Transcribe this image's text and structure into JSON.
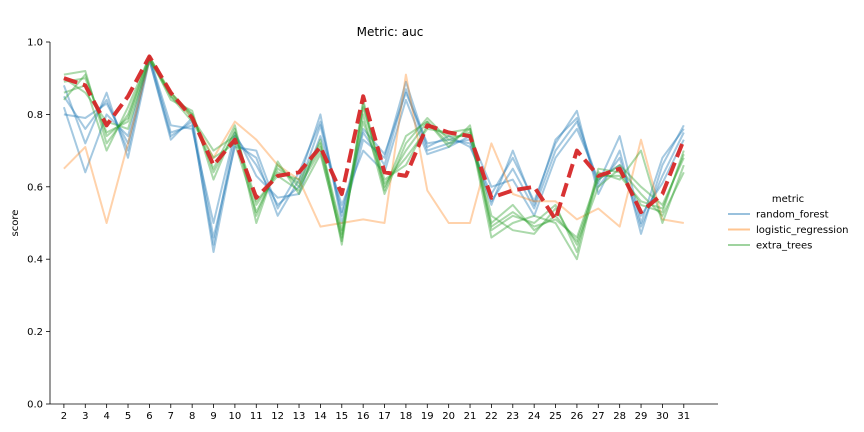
{
  "chart_data": {
    "type": "line",
    "title": "Metric: auc",
    "xlabel": "",
    "ylabel": "score",
    "x": [
      2,
      3,
      4,
      5,
      6,
      7,
      8,
      9,
      10,
      11,
      12,
      13,
      14,
      15,
      16,
      17,
      18,
      19,
      20,
      21,
      22,
      23,
      24,
      25,
      26,
      27,
      28,
      29,
      30,
      31
    ],
    "yticks": [
      0.0,
      0.2,
      0.4,
      0.6,
      0.8,
      1.0
    ],
    "ylim": [
      0.0,
      1.0
    ],
    "grid": false,
    "legend": {
      "title": "metric",
      "placement": "center-right",
      "entries": [
        "random_forest",
        "logistic_regression",
        "extra_trees"
      ]
    },
    "colors": {
      "random_forest": "#1f77b4",
      "logistic_regression": "#ff7f0e",
      "extra_trees": "#2ca02c",
      "mean": "#d62728"
    },
    "series": [
      {
        "name": "random_forest",
        "values": [
          0.85,
          0.76,
          0.84,
          0.7,
          0.96,
          0.75,
          0.77,
          0.44,
          0.74,
          0.66,
          0.55,
          0.6,
          0.77,
          0.52,
          0.75,
          0.66,
          0.87,
          0.7,
          0.72,
          0.73,
          0.56,
          0.65,
          0.54,
          0.7,
          0.78,
          0.6,
          0.68,
          0.49,
          0.63,
          0.75
        ]
      },
      {
        "name": "random_forest",
        "values": [
          0.88,
          0.72,
          0.86,
          0.68,
          0.95,
          0.74,
          0.78,
          0.42,
          0.72,
          0.68,
          0.52,
          0.62,
          0.8,
          0.5,
          0.73,
          0.68,
          0.89,
          0.71,
          0.74,
          0.71,
          0.58,
          0.68,
          0.56,
          0.72,
          0.81,
          0.58,
          0.7,
          0.47,
          0.66,
          0.77
        ]
      },
      {
        "name": "random_forest",
        "values": [
          0.82,
          0.64,
          0.8,
          0.74,
          0.96,
          0.77,
          0.76,
          0.5,
          0.75,
          0.63,
          0.57,
          0.58,
          0.74,
          0.55,
          0.7,
          0.64,
          0.84,
          0.69,
          0.71,
          0.74,
          0.6,
          0.62,
          0.52,
          0.68,
          0.76,
          0.62,
          0.66,
          0.52,
          0.61,
          0.73
        ]
      },
      {
        "name": "random_forest",
        "values": [
          0.8,
          0.79,
          0.83,
          0.72,
          0.95,
          0.73,
          0.79,
          0.46,
          0.71,
          0.7,
          0.54,
          0.64,
          0.78,
          0.53,
          0.76,
          0.69,
          0.86,
          0.72,
          0.73,
          0.72,
          0.55,
          0.7,
          0.55,
          0.73,
          0.79,
          0.61,
          0.74,
          0.5,
          0.68,
          0.76
        ]
      },
      {
        "name": "logistic_regression",
        "values": [
          0.65,
          0.71,
          0.5,
          0.72,
          0.95,
          0.86,
          0.79,
          0.68,
          0.78,
          0.73,
          0.66,
          0.62,
          0.49,
          0.5,
          0.51,
          0.5,
          0.91,
          0.59,
          0.5,
          0.5,
          0.72,
          0.58,
          0.56,
          0.56,
          0.51,
          0.54,
          0.49,
          0.73,
          0.51,
          0.5
        ]
      },
      {
        "name": "extra_trees",
        "values": [
          0.91,
          0.92,
          0.72,
          0.8,
          0.96,
          0.85,
          0.8,
          0.65,
          0.77,
          0.52,
          0.66,
          0.6,
          0.7,
          0.45,
          0.84,
          0.6,
          0.7,
          0.78,
          0.72,
          0.76,
          0.48,
          0.52,
          0.5,
          0.55,
          0.42,
          0.65,
          0.64,
          0.55,
          0.53,
          0.7
        ]
      },
      {
        "name": "extra_trees",
        "values": [
          0.89,
          0.9,
          0.75,
          0.78,
          0.95,
          0.86,
          0.79,
          0.7,
          0.74,
          0.55,
          0.64,
          0.62,
          0.72,
          0.48,
          0.82,
          0.62,
          0.66,
          0.77,
          0.74,
          0.74,
          0.5,
          0.55,
          0.48,
          0.52,
          0.45,
          0.62,
          0.66,
          0.6,
          0.55,
          0.68
        ]
      },
      {
        "name": "extra_trees",
        "values": [
          0.86,
          0.88,
          0.7,
          0.82,
          0.96,
          0.84,
          0.81,
          0.62,
          0.76,
          0.5,
          0.67,
          0.58,
          0.69,
          0.46,
          0.8,
          0.58,
          0.72,
          0.79,
          0.73,
          0.75,
          0.46,
          0.5,
          0.52,
          0.5,
          0.4,
          0.64,
          0.62,
          0.7,
          0.5,
          0.66
        ]
      },
      {
        "name": "extra_trees",
        "values": [
          0.9,
          0.86,
          0.78,
          0.76,
          0.95,
          0.85,
          0.78,
          0.68,
          0.72,
          0.53,
          0.65,
          0.61,
          0.71,
          0.47,
          0.78,
          0.61,
          0.68,
          0.76,
          0.75,
          0.76,
          0.52,
          0.48,
          0.47,
          0.54,
          0.44,
          0.6,
          0.65,
          0.58,
          0.52,
          0.64
        ]
      },
      {
        "name": "extra_trees",
        "values": [
          0.84,
          0.91,
          0.74,
          0.79,
          0.96,
          0.86,
          0.8,
          0.64,
          0.75,
          0.56,
          0.63,
          0.59,
          0.73,
          0.44,
          0.83,
          0.59,
          0.74,
          0.78,
          0.71,
          0.77,
          0.49,
          0.53,
          0.49,
          0.51,
          0.46,
          0.63,
          0.63,
          0.56,
          0.54,
          0.69
        ]
      },
      {
        "name": "",
        "style": "mean",
        "values": [
          0.9,
          0.88,
          0.77,
          0.85,
          0.96,
          0.86,
          0.79,
          0.66,
          0.73,
          0.57,
          0.63,
          0.64,
          0.71,
          0.58,
          0.85,
          0.64,
          0.63,
          0.77,
          0.75,
          0.74,
          0.57,
          0.59,
          0.6,
          0.51,
          0.7,
          0.63,
          0.65,
          0.53,
          0.58,
          0.73
        ]
      }
    ]
  }
}
